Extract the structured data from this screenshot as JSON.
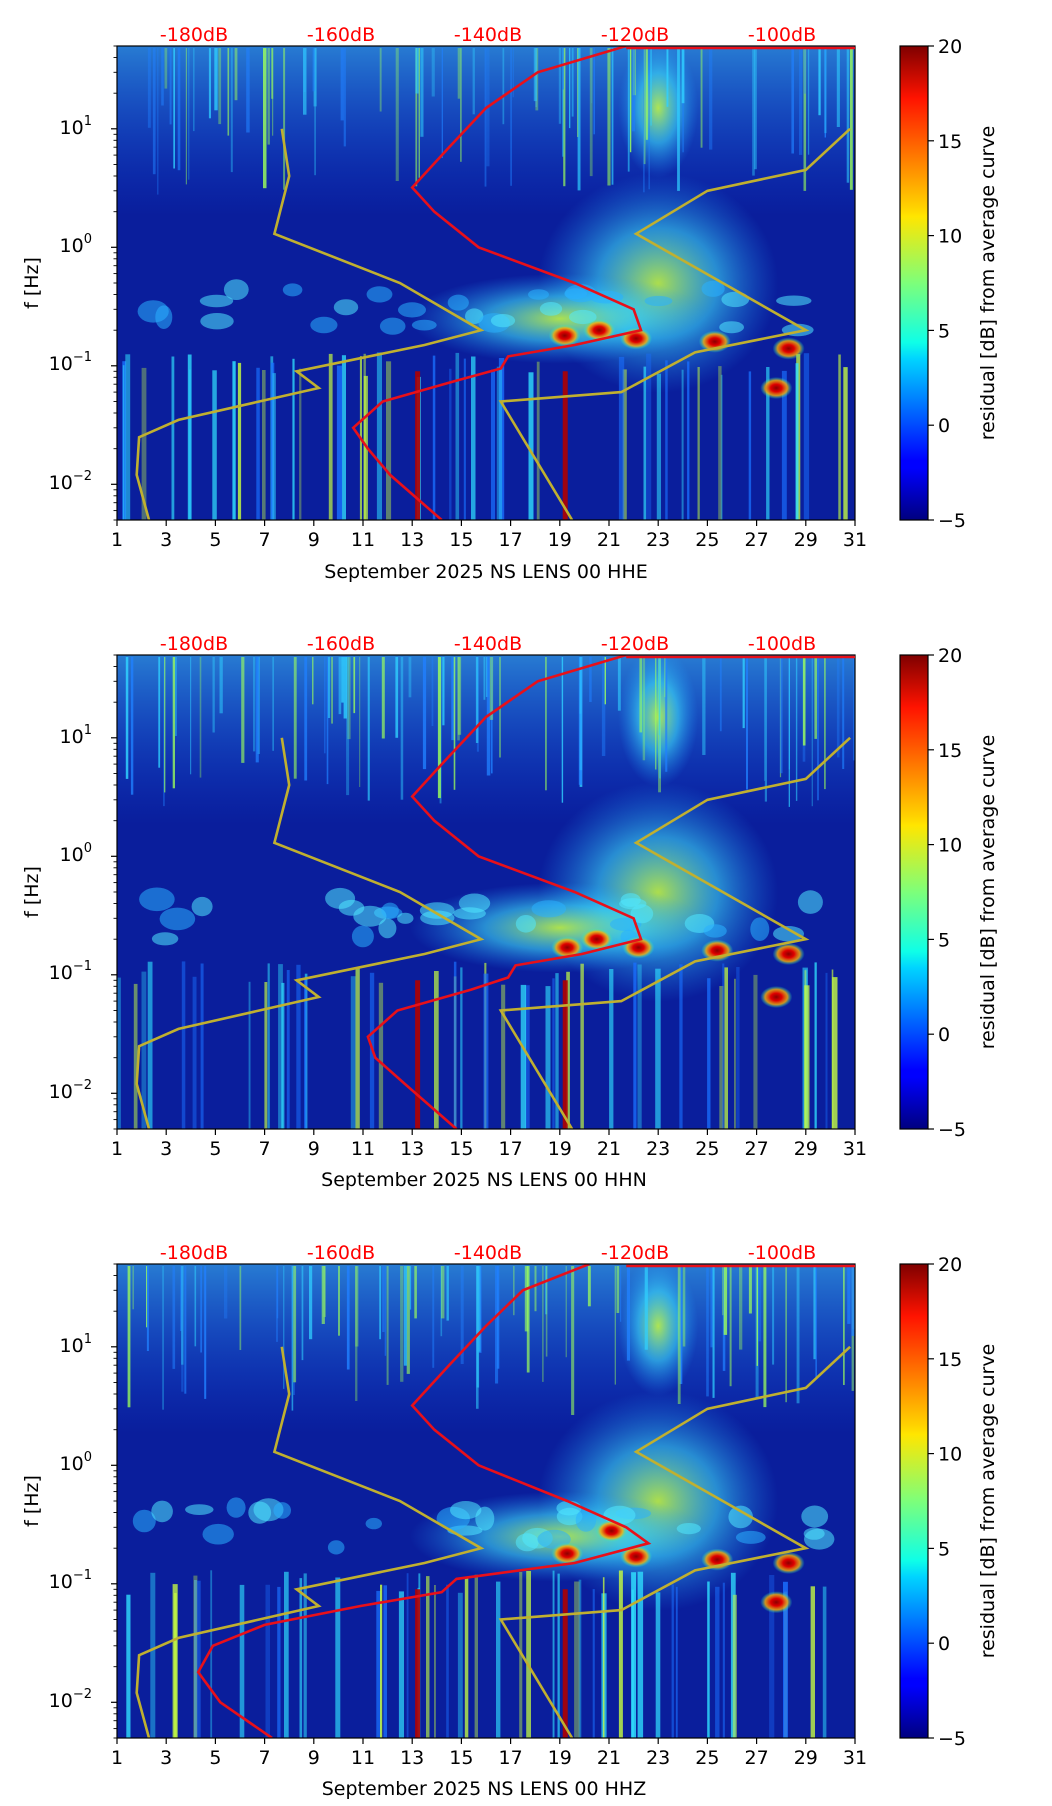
{
  "figure": {
    "colormap": "jet",
    "colorbar_label": "residual [dB] from average curve",
    "colorbar_ticks": [
      "20",
      "15",
      "10",
      "5",
      "0",
      "−5"
    ],
    "ylabel": "f [Hz]",
    "x_tick_labels": [
      "1",
      "3",
      "5",
      "7",
      "9",
      "11",
      "13",
      "15",
      "17",
      "19",
      "21",
      "23",
      "25",
      "27",
      "29",
      "31"
    ],
    "top_db_labels": [
      "-180dB",
      "-160dB",
      "-140dB",
      "-120dB",
      "-100dB"
    ],
    "y_tick_labels": [
      {
        "base": "10",
        "exp": "1"
      },
      {
        "base": "10",
        "exp": "0"
      },
      {
        "base": "10",
        "exp": "−1"
      },
      {
        "base": "10",
        "exp": "−2"
      }
    ],
    "colors": {
      "red_curve": "#e8101a",
      "reference_curve": "#c0b030",
      "db_label": "#ff0000",
      "background": "#0a1e9c"
    }
  },
  "chart_data": [
    {
      "type": "heatmap",
      "title": "",
      "xlabel": "September 2025 NS LENS 00 HHE",
      "ylabel": "f [Hz]",
      "x_range_days": [
        1,
        31
      ],
      "y_range_hz": [
        0.005,
        50
      ],
      "y_scale": "log",
      "colorbar_range_db": [
        -5,
        20
      ],
      "hot_spots": [
        {
          "day": 19.2,
          "f_hz": 0.18
        },
        {
          "day": 20.6,
          "f_hz": 0.2
        },
        {
          "day": 22.1,
          "f_hz": 0.17
        },
        {
          "day": 25.3,
          "f_hz": 0.16
        },
        {
          "day": 28.3,
          "f_hz": 0.14
        },
        {
          "day": 27.8,
          "f_hz": 0.065
        }
      ],
      "red_curve": {
        "name": "PSD average (x: dB, top scale)",
        "points": [
          {
            "db": -146,
            "f_hz": 0.005
          },
          {
            "db": -153,
            "f_hz": 0.012
          },
          {
            "db": -156,
            "f_hz": 0.02
          },
          {
            "db": -158,
            "f_hz": 0.03
          },
          {
            "db": -154,
            "f_hz": 0.05
          },
          {
            "db": -144,
            "f_hz": 0.075
          },
          {
            "db": -138,
            "f_hz": 0.095
          },
          {
            "db": -137,
            "f_hz": 0.12
          },
          {
            "db": -128,
            "f_hz": 0.15
          },
          {
            "db": -119,
            "f_hz": 0.2
          },
          {
            "db": -120,
            "f_hz": 0.3
          },
          {
            "db": -128,
            "f_hz": 0.5
          },
          {
            "db": -141,
            "f_hz": 1.0
          },
          {
            "db": -147,
            "f_hz": 2.0
          },
          {
            "db": -150,
            "f_hz": 3.2
          },
          {
            "db": -145,
            "f_hz": 7
          },
          {
            "db": -140,
            "f_hz": 15
          },
          {
            "db": -133,
            "f_hz": 30
          },
          {
            "db": -121,
            "f_hz": 50
          }
        ]
      },
      "reference_curves": [
        {
          "name": "low noise model",
          "points": [
            {
              "day": 2.3,
              "f_hz": 0.005
            },
            {
              "day": 1.8,
              "f_hz": 0.012
            },
            {
              "day": 1.9,
              "f_hz": 0.025
            },
            {
              "day": 3.5,
              "f_hz": 0.035
            },
            {
              "day": 9.2,
              "f_hz": 0.065
            },
            {
              "day": 8.3,
              "f_hz": 0.09
            },
            {
              "day": 13.5,
              "f_hz": 0.15
            },
            {
              "day": 15.8,
              "f_hz": 0.2
            },
            {
              "day": 12.5,
              "f_hz": 0.5
            },
            {
              "day": 7.4,
              "f_hz": 1.3
            },
            {
              "day": 8.0,
              "f_hz": 4
            },
            {
              "day": 7.7,
              "f_hz": 10
            }
          ]
        },
        {
          "name": "high noise model",
          "points": [
            {
              "day": 19.5,
              "f_hz": 0.005
            },
            {
              "day": 16.6,
              "f_hz": 0.05
            },
            {
              "day": 21.5,
              "f_hz": 0.06
            },
            {
              "day": 24.5,
              "f_hz": 0.13
            },
            {
              "day": 29.0,
              "f_hz": 0.2
            },
            {
              "day": 22.1,
              "f_hz": 1.3
            },
            {
              "day": 25.0,
              "f_hz": 3.0
            },
            {
              "day": 29.0,
              "f_hz": 4.5
            },
            {
              "day": 30.8,
              "f_hz": 10
            }
          ]
        }
      ]
    },
    {
      "type": "heatmap",
      "title": "",
      "xlabel": "September 2025 NS LENS 00 HHN",
      "ylabel": "f [Hz]",
      "x_range_days": [
        1,
        31
      ],
      "y_range_hz": [
        0.005,
        50
      ],
      "y_scale": "log",
      "colorbar_range_db": [
        -5,
        20
      ],
      "hot_spots": [
        {
          "day": 19.3,
          "f_hz": 0.17
        },
        {
          "day": 20.5,
          "f_hz": 0.2
        },
        {
          "day": 22.2,
          "f_hz": 0.17
        },
        {
          "day": 25.4,
          "f_hz": 0.16
        },
        {
          "day": 28.3,
          "f_hz": 0.15
        },
        {
          "day": 27.8,
          "f_hz": 0.065
        }
      ],
      "red_curve": {
        "name": "PSD average (x: dB, top scale)",
        "points": [
          {
            "db": -144,
            "f_hz": 0.005
          },
          {
            "db": -151,
            "f_hz": 0.012
          },
          {
            "db": -155,
            "f_hz": 0.02
          },
          {
            "db": -156,
            "f_hz": 0.03
          },
          {
            "db": -152,
            "f_hz": 0.05
          },
          {
            "db": -142,
            "f_hz": 0.075
          },
          {
            "db": -137,
            "f_hz": 0.095
          },
          {
            "db": -136,
            "f_hz": 0.12
          },
          {
            "db": -127,
            "f_hz": 0.15
          },
          {
            "db": -119,
            "f_hz": 0.2
          },
          {
            "db": -120,
            "f_hz": 0.3
          },
          {
            "db": -128,
            "f_hz": 0.5
          },
          {
            "db": -141,
            "f_hz": 1.0
          },
          {
            "db": -147,
            "f_hz": 2.0
          },
          {
            "db": -150,
            "f_hz": 3.2
          },
          {
            "db": -145,
            "f_hz": 7
          },
          {
            "db": -140,
            "f_hz": 15
          },
          {
            "db": -133,
            "f_hz": 30
          },
          {
            "db": -121,
            "f_hz": 50
          }
        ]
      },
      "reference_curves": [
        {
          "name": "low noise model",
          "points": [
            {
              "day": 2.3,
              "f_hz": 0.005
            },
            {
              "day": 1.8,
              "f_hz": 0.012
            },
            {
              "day": 1.9,
              "f_hz": 0.025
            },
            {
              "day": 3.5,
              "f_hz": 0.035
            },
            {
              "day": 9.2,
              "f_hz": 0.065
            },
            {
              "day": 8.3,
              "f_hz": 0.09
            },
            {
              "day": 13.5,
              "f_hz": 0.15
            },
            {
              "day": 15.8,
              "f_hz": 0.2
            },
            {
              "day": 12.5,
              "f_hz": 0.5
            },
            {
              "day": 7.4,
              "f_hz": 1.3
            },
            {
              "day": 8.0,
              "f_hz": 4
            },
            {
              "day": 7.7,
              "f_hz": 10
            }
          ]
        },
        {
          "name": "high noise model",
          "points": [
            {
              "day": 19.5,
              "f_hz": 0.005
            },
            {
              "day": 16.6,
              "f_hz": 0.05
            },
            {
              "day": 21.5,
              "f_hz": 0.06
            },
            {
              "day": 24.5,
              "f_hz": 0.13
            },
            {
              "day": 29.0,
              "f_hz": 0.2
            },
            {
              "day": 22.1,
              "f_hz": 1.3
            },
            {
              "day": 25.0,
              "f_hz": 3.0
            },
            {
              "day": 29.0,
              "f_hz": 4.5
            },
            {
              "day": 30.8,
              "f_hz": 10
            }
          ]
        }
      ]
    },
    {
      "type": "heatmap",
      "title": "",
      "xlabel": "September 2025 NS LENS 00 HHZ",
      "ylabel": "f [Hz]",
      "x_range_days": [
        1,
        31
      ],
      "y_range_hz": [
        0.005,
        50
      ],
      "y_scale": "log",
      "colorbar_range_db": [
        -5,
        20
      ],
      "hot_spots": [
        {
          "day": 19.3,
          "f_hz": 0.18
        },
        {
          "day": 21.1,
          "f_hz": 0.28
        },
        {
          "day": 22.1,
          "f_hz": 0.17
        },
        {
          "day": 25.4,
          "f_hz": 0.16
        },
        {
          "day": 28.3,
          "f_hz": 0.15
        },
        {
          "day": 27.8,
          "f_hz": 0.07
        }
      ],
      "red_curve": {
        "name": "PSD average (x: dB, top scale)",
        "points": [
          {
            "db": -169,
            "f_hz": 0.005
          },
          {
            "db": -176,
            "f_hz": 0.01
          },
          {
            "db": -179,
            "f_hz": 0.018
          },
          {
            "db": -177,
            "f_hz": 0.03
          },
          {
            "db": -170,
            "f_hz": 0.045
          },
          {
            "db": -157,
            "f_hz": 0.065
          },
          {
            "db": -146,
            "f_hz": 0.085
          },
          {
            "db": -144,
            "f_hz": 0.11
          },
          {
            "db": -128,
            "f_hz": 0.15
          },
          {
            "db": -118,
            "f_hz": 0.22
          },
          {
            "db": -121,
            "f_hz": 0.3
          },
          {
            "db": -129,
            "f_hz": 0.5
          },
          {
            "db": -141,
            "f_hz": 1.0
          },
          {
            "db": -147,
            "f_hz": 2.0
          },
          {
            "db": -150,
            "f_hz": 3.2
          },
          {
            "db": -145,
            "f_hz": 7
          },
          {
            "db": -140,
            "f_hz": 15
          },
          {
            "db": -135,
            "f_hz": 30
          },
          {
            "db": -126,
            "f_hz": 50
          }
        ]
      },
      "reference_curves": [
        {
          "name": "low noise model",
          "points": [
            {
              "day": 2.3,
              "f_hz": 0.005
            },
            {
              "day": 1.8,
              "f_hz": 0.012
            },
            {
              "day": 1.9,
              "f_hz": 0.025
            },
            {
              "day": 3.5,
              "f_hz": 0.035
            },
            {
              "day": 9.2,
              "f_hz": 0.065
            },
            {
              "day": 8.3,
              "f_hz": 0.09
            },
            {
              "day": 13.5,
              "f_hz": 0.15
            },
            {
              "day": 15.8,
              "f_hz": 0.2
            },
            {
              "day": 12.5,
              "f_hz": 0.5
            },
            {
              "day": 7.4,
              "f_hz": 1.3
            },
            {
              "day": 8.0,
              "f_hz": 4
            },
            {
              "day": 7.7,
              "f_hz": 10
            }
          ]
        },
        {
          "name": "high noise model",
          "points": [
            {
              "day": 19.5,
              "f_hz": 0.005
            },
            {
              "day": 16.6,
              "f_hz": 0.05
            },
            {
              "day": 21.5,
              "f_hz": 0.06
            },
            {
              "day": 24.5,
              "f_hz": 0.13
            },
            {
              "day": 29.0,
              "f_hz": 0.2
            },
            {
              "day": 22.1,
              "f_hz": 1.3
            },
            {
              "day": 25.0,
              "f_hz": 3.0
            },
            {
              "day": 29.0,
              "f_hz": 4.5
            },
            {
              "day": 30.8,
              "f_hz": 10
            }
          ]
        }
      ]
    }
  ]
}
